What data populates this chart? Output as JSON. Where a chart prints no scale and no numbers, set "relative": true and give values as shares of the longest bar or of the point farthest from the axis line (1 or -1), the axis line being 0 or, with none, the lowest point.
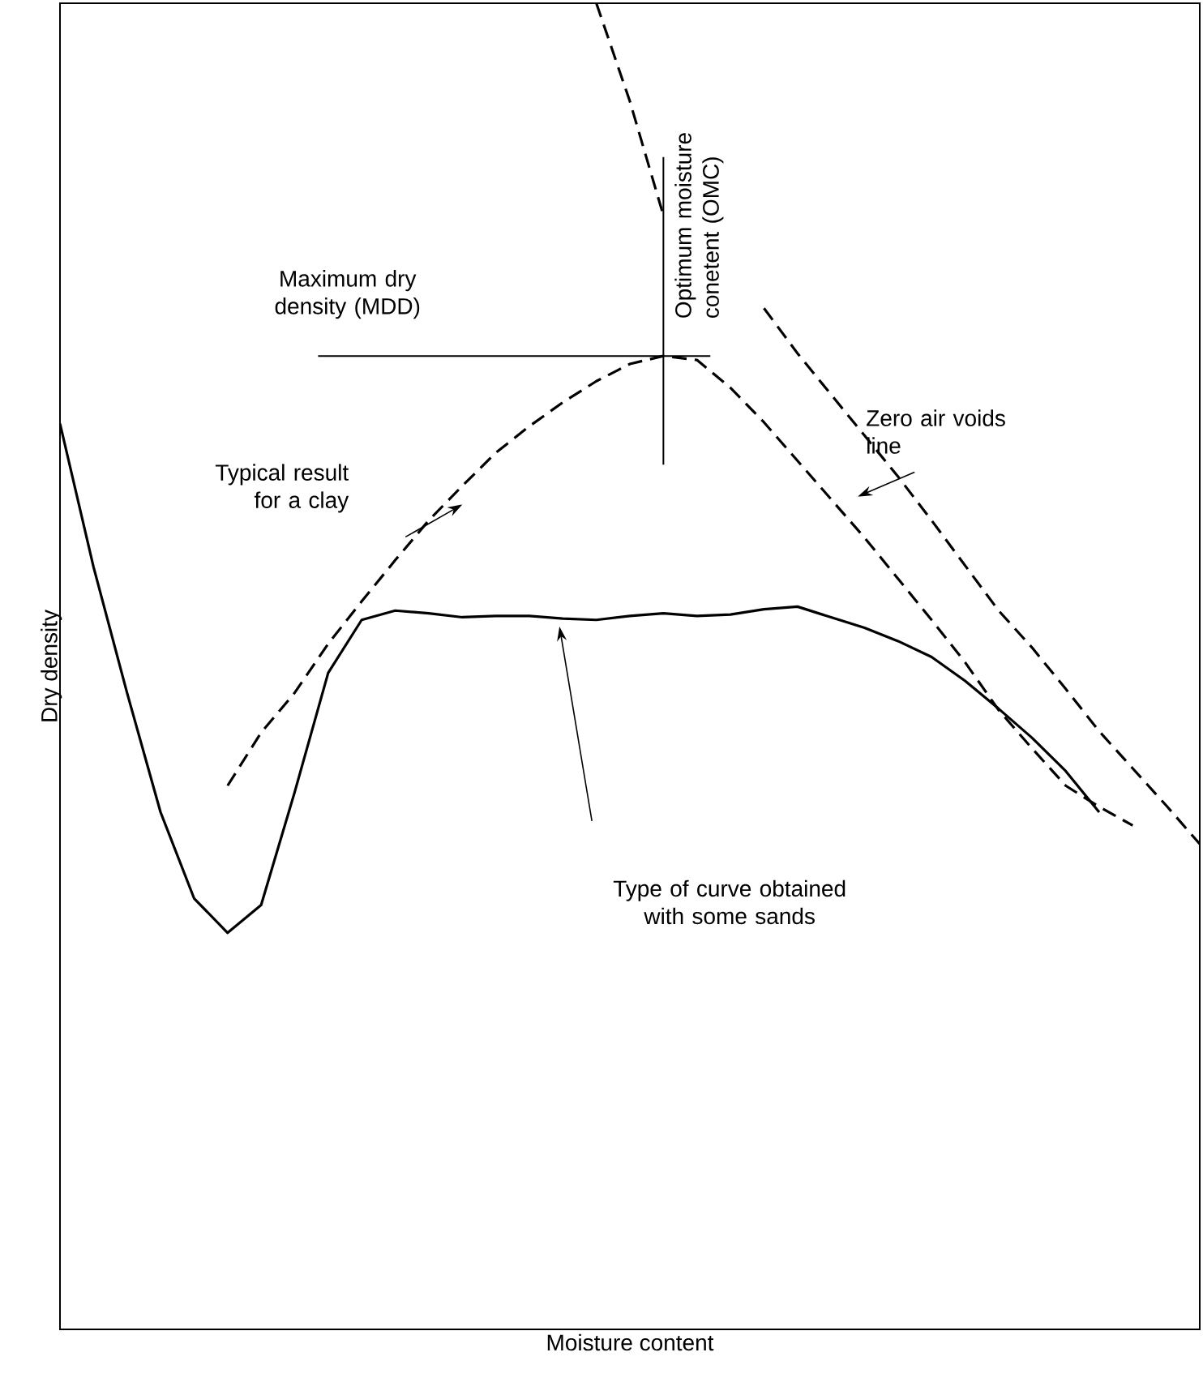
{
  "chart_data": {
    "type": "line",
    "relative": true,
    "xlabel": "Moisture content",
    "ylabel": "Dry density",
    "tick_labels": false,
    "marker": "none",
    "categories": [
      null,
      null,
      null,
      null,
      null,
      null,
      null,
      null,
      null,
      null,
      null,
      null,
      null,
      null,
      null,
      null,
      null,
      null,
      null,
      null,
      null,
      null,
      null,
      null,
      null,
      null,
      null,
      null,
      null,
      null,
      null,
      null,
      null,
      null,
      null
    ],
    "series": [
      {
        "color": "#000000",
        "line_style": "solid",
        "values": [
          0.683,
          0.575,
          0.48,
          0.39,
          0.325,
          0.299,
          0.32,
          0.405,
          0.495,
          0.535,
          0.542,
          0.54,
          0.537,
          0.538,
          0.538,
          0.536,
          0.535,
          0.538,
          0.54,
          0.538,
          0.539,
          0.543,
          0.545,
          0.537,
          0.529,
          0.519,
          0.507,
          0.489,
          0.468,
          0.446,
          0.421,
          0.39,
          null,
          null,
          null
        ]
      },
      {
        "color": "#000000",
        "line_style": "dashed",
        "values": [
          null,
          null,
          null,
          null,
          null,
          0.41,
          0.45,
          0.48,
          0.517,
          0.549,
          0.58,
          0.61,
          0.636,
          0.661,
          0.681,
          0.699,
          0.715,
          0.728,
          0.734,
          0.731,
          0.71,
          0.684,
          0.655,
          0.626,
          0.597,
          0.566,
          0.535,
          0.503,
          0.467,
          0.438,
          0.41,
          0.394,
          0.38,
          null,
          null
        ]
      },
      {
        "color": "#000000",
        "line_style": "dashed",
        "values": [
          null,
          null,
          null,
          null,
          null,
          null,
          null,
          null,
          null,
          null,
          null,
          null,
          null,
          null,
          null,
          null,
          1.0,
          0.926,
          0.84,
          null,
          null,
          0.77,
          0.736,
          0.705,
          0.674,
          0.643,
          0.61,
          0.576,
          0.542,
          0.514,
          0.483,
          0.451,
          0.423,
          0.395,
          0.366
        ]
      }
    ],
    "ref_lines": [
      {
        "axis": "y",
        "value": 0.734,
        "label": "Maximum dry density (MDD)",
        "color": "#000000",
        "line_style": "solid"
      }
    ],
    "annotations": [
      "Optimum moisture conetent (OMC)",
      "Typical result for a clay",
      "Zero air voids line",
      "Type of curve obtained with some sands"
    ]
  }
}
